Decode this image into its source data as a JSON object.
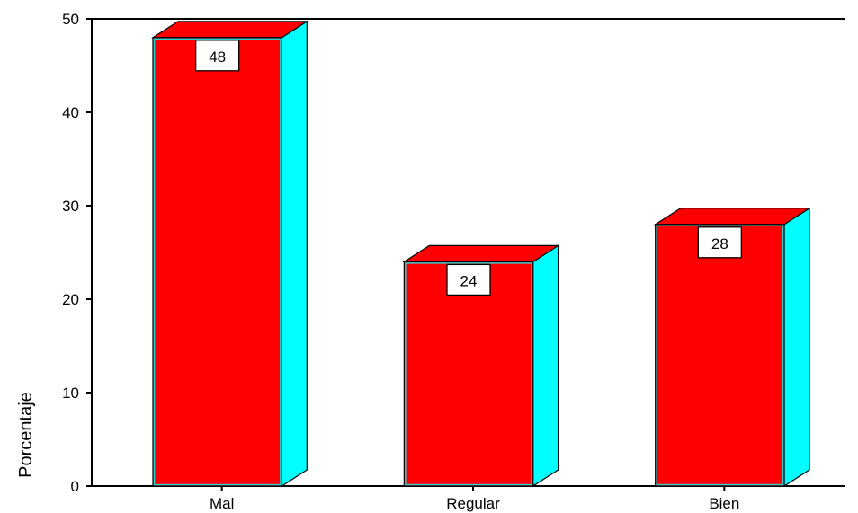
{
  "chart_data": {
    "type": "bar",
    "style": "3d",
    "categories": [
      "Mal",
      "Regular",
      "Bien"
    ],
    "values": [
      48,
      24,
      28
    ],
    "data_labels": [
      "48",
      "24",
      "28"
    ],
    "title": "",
    "xlabel": "",
    "ylabel": "Porcentaje",
    "ylim": [
      0,
      50
    ],
    "yticks": [
      0,
      10,
      20,
      30,
      40,
      50
    ],
    "grid": false,
    "legend": "none",
    "colors": {
      "front": "#ff0000",
      "side": "#00ffff",
      "top": "#ff0000",
      "edge": "#33cccc",
      "outline": "#000000",
      "label_bg": "#ffffff"
    }
  }
}
